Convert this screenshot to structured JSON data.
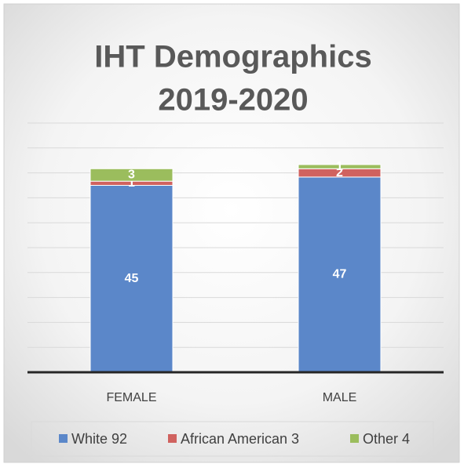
{
  "chart_data": {
    "type": "stacked_bar",
    "title": "IHT Demographics",
    "subtitle": "2019-2020",
    "categories": [
      "FEMALE",
      "MALE"
    ],
    "series": [
      {
        "name": "White 92",
        "color": "#5b87c9",
        "values": [
          45,
          47
        ]
      },
      {
        "name": "African American 3",
        "color": "#d0625f",
        "values": [
          1,
          2
        ]
      },
      {
        "name": "Other 4",
        "color": "#9bbd5d",
        "values": [
          3,
          1
        ]
      }
    ],
    "ylim": [
      0,
      60
    ],
    "yticks": [
      0,
      6,
      12,
      18,
      24,
      30,
      36,
      42,
      48,
      54,
      60
    ],
    "grid": true,
    "legend": "bottom"
  }
}
